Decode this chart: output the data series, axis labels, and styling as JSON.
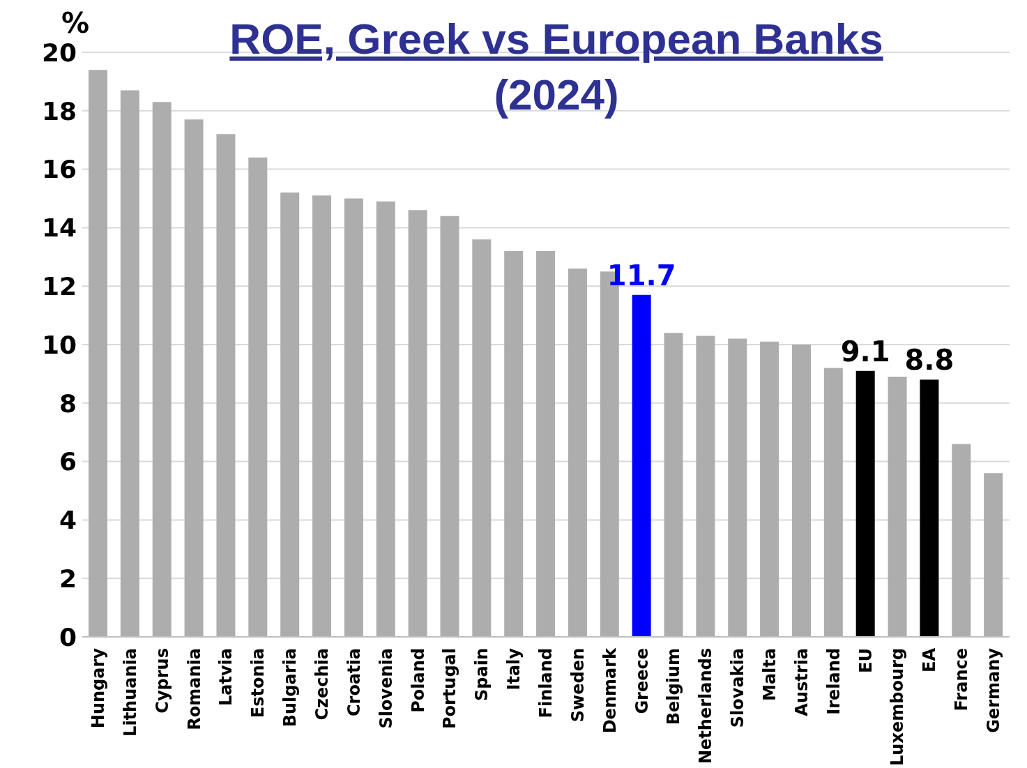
{
  "chart_data": {
    "type": "bar",
    "title": "ROE, Greek vs European Banks",
    "subtitle": "(2024)",
    "ylabel": "%",
    "categories": [
      "Hungary",
      "Lithuania",
      "Cyprus",
      "Romania",
      "Latvia",
      "Estonia",
      "Bulgaria",
      "Czechia",
      "Croatia",
      "Slovenia",
      "Poland",
      "Portugal",
      "Spain",
      "Italy",
      "Finland",
      "Sweden",
      "Denmark",
      "Greece",
      "Belgium",
      "Netherlands",
      "Slovakia",
      "Malta",
      "Austria",
      "Ireland",
      "EU",
      "Luxembourg",
      "EA",
      "France",
      "Germany"
    ],
    "values": [
      19.4,
      18.7,
      18.3,
      17.7,
      17.2,
      16.4,
      15.2,
      15.1,
      15.0,
      14.9,
      14.6,
      14.4,
      13.6,
      13.2,
      13.2,
      12.6,
      12.5,
      11.7,
      10.4,
      10.3,
      10.2,
      10.1,
      10.0,
      9.2,
      9.1,
      8.9,
      8.8,
      6.6,
      5.6
    ],
    "colors": [
      "#adadad",
      "#adadad",
      "#adadad",
      "#adadad",
      "#adadad",
      "#adadad",
      "#adadad",
      "#adadad",
      "#adadad",
      "#adadad",
      "#adadad",
      "#adadad",
      "#adadad",
      "#adadad",
      "#adadad",
      "#adadad",
      "#adadad",
      "#0000ff",
      "#adadad",
      "#adadad",
      "#adadad",
      "#adadad",
      "#adadad",
      "#adadad",
      "#000000",
      "#adadad",
      "#000000",
      "#adadad",
      "#adadad"
    ],
    "value_labels": [
      null,
      null,
      null,
      null,
      null,
      null,
      null,
      null,
      null,
      null,
      null,
      null,
      null,
      null,
      null,
      null,
      null,
      "11.7",
      null,
      null,
      null,
      null,
      null,
      null,
      "9.1",
      null,
      "8.8",
      null,
      null
    ],
    "ylim": [
      0,
      20
    ],
    "yticks": [
      0,
      2,
      4,
      6,
      8,
      10,
      12,
      14,
      16,
      18,
      20
    ],
    "grid": "y"
  }
}
